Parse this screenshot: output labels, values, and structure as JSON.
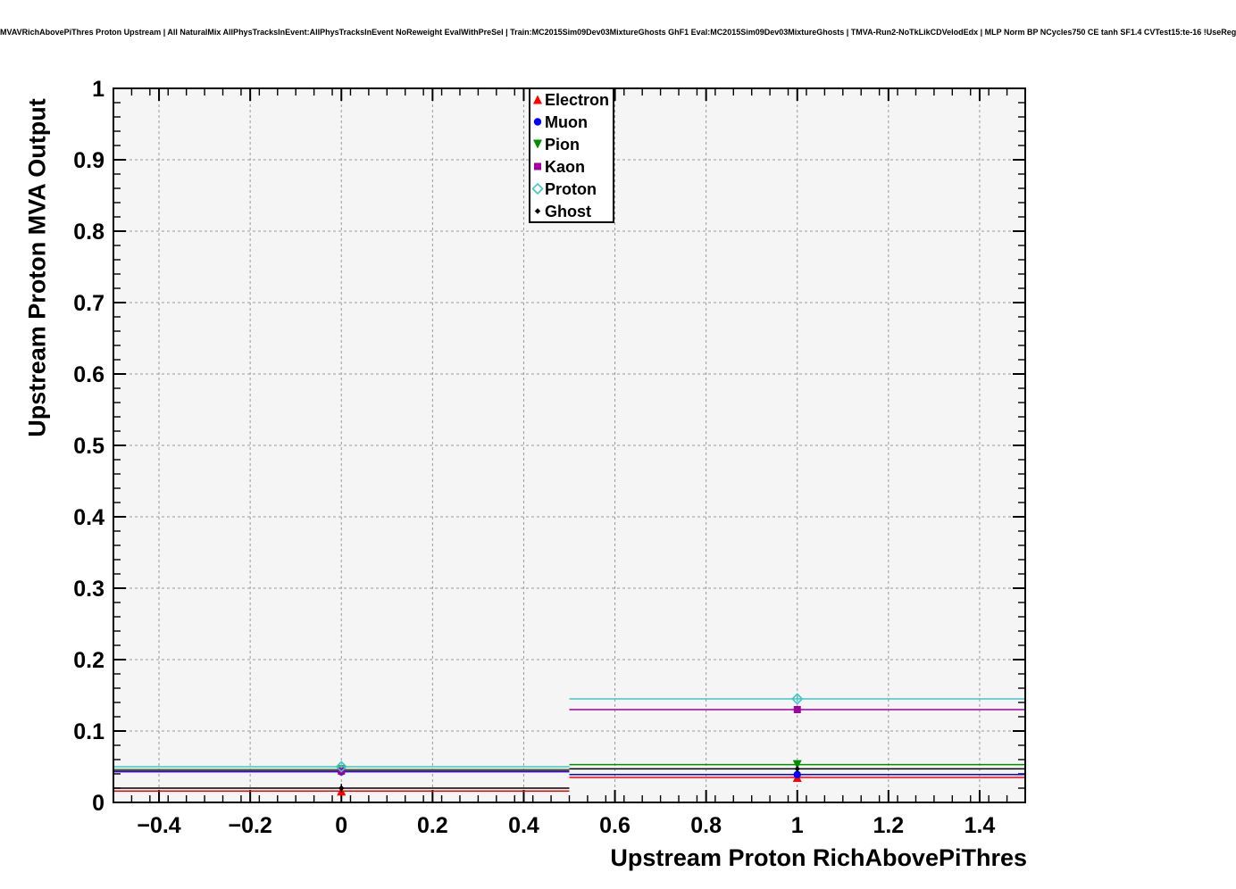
{
  "header": {
    "title": "MVAVRichAbovePiThres Proton Upstream | All NaturalMix AllPhysTracksInEvent:AllPhysTracksInEvent NoReweight EvalWithPreSel | Train:MC2015Sim09Dev03MixtureGhosts GhF1 Eval:MC2015Sim09Dev03MixtureGhosts | TMVA-Run2-NoTkLikCDVelodEdx | MLP Norm BP NCycles750 CE tanh SF1.4 CVTest15:te-16 !UseReg"
  },
  "chart_data": {
    "type": "line",
    "subtype": "profile-histogram",
    "title": "",
    "xlabel": "Upstream Proton RichAbovePiThres",
    "ylabel": "Upstream Proton MVA Output",
    "xlim": [
      -0.5,
      1.5
    ],
    "ylim": [
      0,
      1
    ],
    "grid": true,
    "x_major_ticks": [
      -0.4,
      -0.2,
      0,
      0.2,
      0.4,
      0.6,
      0.8,
      1,
      1.2,
      1.4
    ],
    "x_tick_labels": [
      "−0.4",
      "−0.2",
      "0",
      "0.2",
      "0.4",
      "0.6",
      "0.8",
      "1",
      "1.2",
      "1.4"
    ],
    "x_minor_step": 0.04,
    "y_major_ticks": [
      0,
      0.1,
      0.2,
      0.3,
      0.4,
      0.5,
      0.6,
      0.7,
      0.8,
      0.9,
      1
    ],
    "y_tick_labels": [
      "0",
      "0.1",
      "0.2",
      "0.3",
      "0.4",
      "0.5",
      "0.6",
      "0.7",
      "0.8",
      "0.9",
      "1"
    ],
    "y_minor_step": 0.02,
    "bins": [
      {
        "low": -0.5,
        "high": 0.5,
        "center": 0
      },
      {
        "low": 0.5,
        "high": 1.5,
        "center": 1
      }
    ],
    "series": [
      {
        "name": "Electron",
        "marker": "triangle-up",
        "color": "#ff0000",
        "values": [
          0.016,
          0.035
        ],
        "errors": [
          0.004,
          0.002
        ]
      },
      {
        "name": "Muon",
        "marker": "circle",
        "color": "#0000ff",
        "values": [
          0.043,
          0.039
        ],
        "errors": [
          0.002,
          0.002
        ]
      },
      {
        "name": "Pion",
        "marker": "triangle-down",
        "color": "#008f00",
        "values": [
          0.046,
          0.053
        ],
        "errors": [
          0.0015,
          0.0015
        ]
      },
      {
        "name": "Kaon",
        "marker": "square",
        "color": "#a000a0",
        "values": [
          0.044,
          0.13
        ],
        "errors": [
          0.0015,
          0.003
        ]
      },
      {
        "name": "Proton",
        "marker": "open-diamond",
        "color": "#45c5c5",
        "values": [
          0.05,
          0.145
        ],
        "errors": [
          0.002,
          0.004
        ]
      },
      {
        "name": "Ghost",
        "marker": "small-diamond",
        "color": "#000000",
        "values": [
          0.02,
          0.047
        ],
        "errors": [
          0.006,
          0.003
        ]
      }
    ],
    "legend": {
      "position": "top-center",
      "entries": [
        "Electron",
        "Muon",
        "Pion",
        "Kaon",
        "Proton",
        "Ghost"
      ]
    },
    "colors": {
      "page_bg": "#ffffff",
      "plot_bg": "#f5f5f5",
      "grid": "#999999",
      "frame": "#000000",
      "legend_bg": "#ffffff"
    }
  }
}
